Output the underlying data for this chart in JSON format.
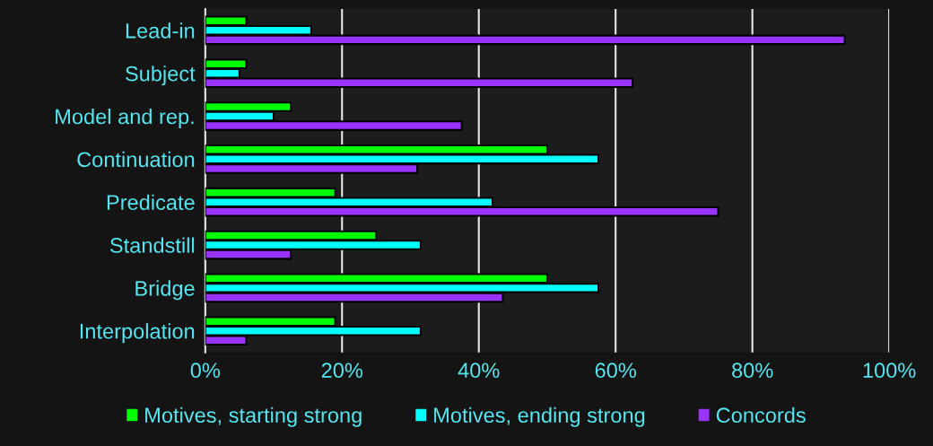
{
  "chart_data": {
    "type": "bar",
    "orientation": "horizontal",
    "categories": [
      "Lead-in",
      "Subject",
      "Model and rep.",
      "Continuation",
      "Predicate",
      "Standstill",
      "Bridge",
      "Interpolation"
    ],
    "series": [
      {
        "name": "Motives, starting strong",
        "color": "#00ff00",
        "values": [
          6,
          6,
          12.5,
          50,
          19,
          25,
          50,
          19
        ]
      },
      {
        "name": "Motives, ending strong",
        "color": "#00ffff",
        "values": [
          15.5,
          5,
          10,
          57.5,
          42,
          31.5,
          57.5,
          31.5
        ]
      },
      {
        "name": "Concords",
        "color": "#9933ff",
        "values": [
          93.5,
          62.5,
          37.5,
          31,
          75,
          12.5,
          43.5,
          6
        ]
      }
    ],
    "xlim": [
      0,
      100
    ],
    "xticks": [
      {
        "value": 0,
        "label": "0%"
      },
      {
        "value": 20,
        "label": "20%"
      },
      {
        "value": 40,
        "label": "40%"
      },
      {
        "value": 60,
        "label": "60%"
      },
      {
        "value": 80,
        "label": "80%"
      },
      {
        "value": 100,
        "label": "100%"
      }
    ],
    "grid": "x",
    "legend": "bottom"
  }
}
